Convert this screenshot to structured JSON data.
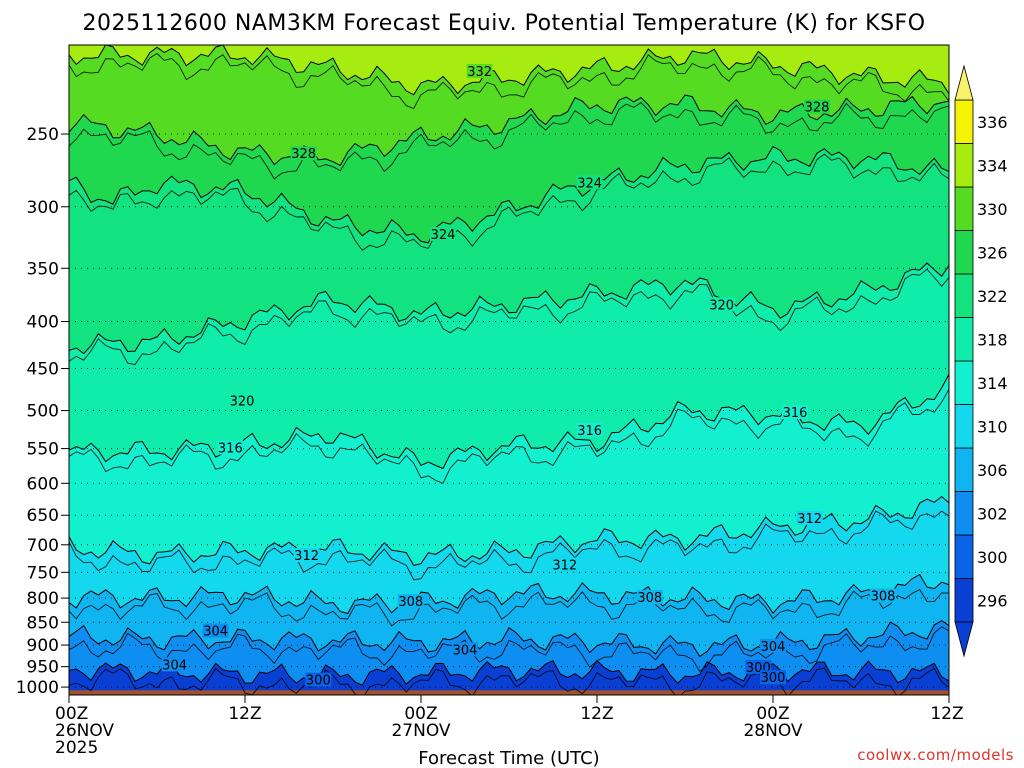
{
  "chart_data": {
    "type": "contour",
    "title": "2025112600 NAM3KM Forecast Equiv. Potential Temperature (K) for KSFO",
    "xlabel": "Forecast Time (UTC)",
    "ylabel": "",
    "x_ticks": [
      {
        "hour": 0,
        "lines": [
          "00Z",
          "26NOV",
          "2025"
        ]
      },
      {
        "hour": 12,
        "lines": [
          "12Z"
        ]
      },
      {
        "hour": 24,
        "lines": [
          "00Z",
          "27NOV"
        ]
      },
      {
        "hour": 36,
        "lines": [
          "12Z"
        ]
      },
      {
        "hour": 48,
        "lines": [
          "00Z",
          "28NOV"
        ]
      },
      {
        "hour": 60,
        "lines": [
          "12Z"
        ]
      }
    ],
    "xlim_hours": [
      0,
      60
    ],
    "y_ticks": [
      250,
      300,
      350,
      400,
      450,
      500,
      550,
      600,
      650,
      700,
      750,
      800,
      850,
      900,
      950,
      1000
    ],
    "ylim_hPa": [
      1020,
      200
    ],
    "colorbar": {
      "ticks": [
        296,
        300,
        302,
        306,
        310,
        314,
        318,
        322,
        326,
        330,
        334,
        336
      ],
      "colors": [
        "#0a3fd4",
        "#0b63e8",
        "#0e8ef0",
        "#10b4f0",
        "#13d8ee",
        "#12f0cf",
        "#10ecaa",
        "#12e27f",
        "#1fd84f",
        "#55dc22",
        "#a6ec10",
        "#f4f402"
      ]
    },
    "series": [
      {
        "name": "332",
        "x": [
          12,
          18,
          24,
          30,
          36,
          42,
          48,
          54,
          60
        ],
        "p": [
          205,
          212,
          222,
          217,
          212,
          205,
          210,
          216,
          220
        ]
      },
      {
        "name": "328",
        "x": [
          0,
          6,
          12,
          18,
          24,
          30,
          36,
          42,
          48,
          54,
          60
        ],
        "p": [
          243,
          250,
          262,
          265,
          252,
          243,
          232,
          232,
          238,
          235,
          230
        ]
      },
      {
        "name": "324",
        "x": [
          0,
          3,
          6,
          12,
          18,
          24,
          30,
          34,
          36,
          42,
          48,
          54,
          60
        ],
        "p": [
          283,
          296,
          283,
          288,
          312,
          322,
          302,
          287,
          282,
          270,
          265,
          265,
          275
        ]
      },
      {
        "name": "320",
        "x": [
          0,
          6,
          12,
          18,
          24,
          30,
          36,
          42,
          48,
          54,
          60
        ],
        "p": [
          425,
          420,
          398,
          378,
          393,
          383,
          373,
          362,
          388,
          372,
          345
        ]
      },
      {
        "name": "316",
        "x": [
          0,
          6,
          12,
          18,
          24,
          30,
          36,
          42,
          48,
          54,
          60
        ],
        "p": [
          555,
          553,
          545,
          530,
          570,
          545,
          540,
          500,
          505,
          520,
          470
        ]
      },
      {
        "name": "312",
        "x": [
          0,
          6,
          12,
          18,
          24,
          30,
          36,
          42,
          48,
          54,
          60
        ],
        "p": [
          705,
          718,
          710,
          706,
          720,
          712,
          690,
          690,
          670,
          658,
          628
        ]
      },
      {
        "name": "308",
        "x": [
          0,
          6,
          12,
          18,
          24,
          30,
          36,
          42,
          48,
          54,
          60
        ],
        "p": [
          798,
          800,
          793,
          812,
          808,
          790,
          792,
          800,
          808,
          792,
          762
        ]
      },
      {
        "name": "304",
        "x": [
          0,
          6,
          12,
          18,
          24,
          30,
          36,
          42,
          48,
          54,
          60
        ],
        "p": [
          880,
          888,
          886,
          890,
          895,
          886,
          893,
          902,
          897,
          880,
          862
        ]
      },
      {
        "name": "300",
        "x": [
          0,
          6,
          12,
          18,
          24,
          30,
          36,
          42,
          48,
          54,
          60
        ],
        "p": [
          955,
          963,
          968,
          972,
          966,
          958,
          962,
          967,
          958,
          962,
          965
        ]
      }
    ],
    "contour_labels": [
      {
        "text": "332",
        "x": 28.0,
        "p": 214
      },
      {
        "text": "328",
        "x": 16.0,
        "p": 263
      },
      {
        "text": "328",
        "x": 51.0,
        "p": 234
      },
      {
        "text": "324",
        "x": 35.5,
        "p": 283
      },
      {
        "text": "324",
        "x": 25.5,
        "p": 322
      },
      {
        "text": "320",
        "x": 44.5,
        "p": 384
      },
      {
        "text": "320",
        "x": 11.8,
        "p": 489
      },
      {
        "text": "316",
        "x": 11.0,
        "p": 550
      },
      {
        "text": "316",
        "x": 35.5,
        "p": 526
      },
      {
        "text": "316",
        "x": 49.5,
        "p": 503
      },
      {
        "text": "312",
        "x": 16.2,
        "p": 720
      },
      {
        "text": "312",
        "x": 33.8,
        "p": 737
      },
      {
        "text": "312",
        "x": 50.5,
        "p": 656
      },
      {
        "text": "308",
        "x": 23.3,
        "p": 808
      },
      {
        "text": "308",
        "x": 39.6,
        "p": 800
      },
      {
        "text": "308",
        "x": 55.5,
        "p": 797
      },
      {
        "text": "304",
        "x": 10.0,
        "p": 870
      },
      {
        "text": "304",
        "x": 27.0,
        "p": 912
      },
      {
        "text": "304",
        "x": 48.0,
        "p": 904
      },
      {
        "text": "304",
        "x": 7.2,
        "p": 947
      },
      {
        "text": "300",
        "x": 17.0,
        "p": 984
      },
      {
        "text": "300",
        "x": 47.0,
        "p": 953
      },
      {
        "text": "300",
        "x": 48.0,
        "p": 978
      }
    ],
    "surface": {
      "color": "#a0522d",
      "label": "terrain"
    }
  },
  "credit": "coolwx.com/models"
}
